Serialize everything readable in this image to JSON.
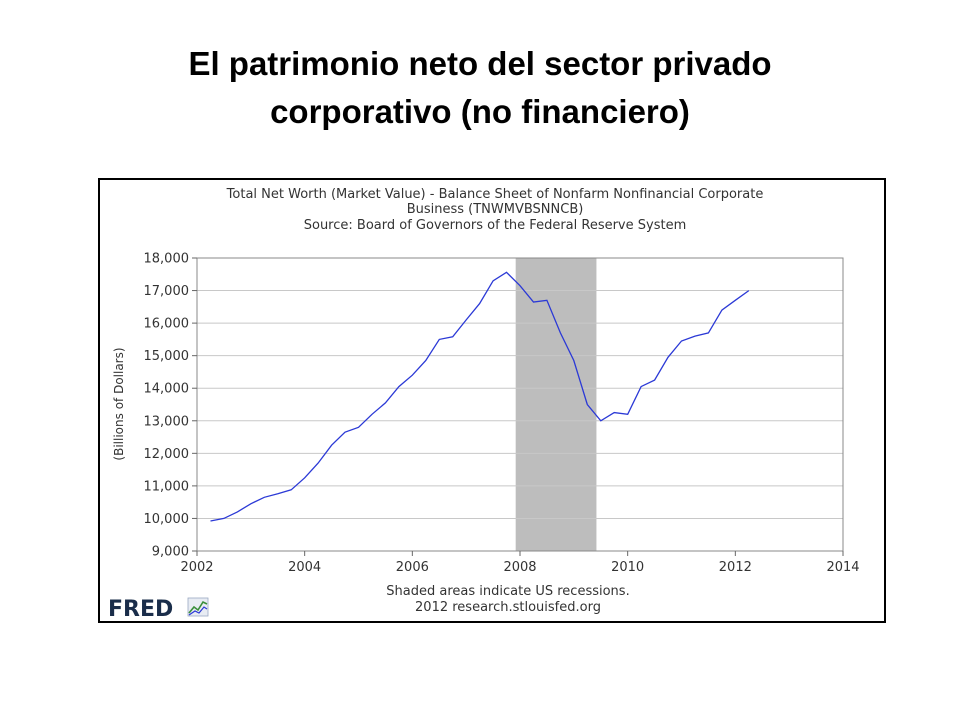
{
  "slide": {
    "title_line1": "El patrimonio neto del sector privado",
    "title_line2": "corporativo (no financiero)"
  },
  "chart_data": {
    "type": "line",
    "title_lines": [
      "Total Net Worth (Market Value) - Balance Sheet of Nonfarm Nonfinancial Corporate",
      "Business (TNWMVBSNNCB)",
      "Source: Board of Governors of the Federal Reserve System"
    ],
    "xlabel": "",
    "ylabel": "(Billions of Dollars)",
    "xlim": [
      2002,
      2014
    ],
    "ylim": [
      9000,
      18000
    ],
    "x_ticks": [
      2002,
      2004,
      2006,
      2008,
      2010,
      2012,
      2014
    ],
    "x_tick_labels": [
      "2002",
      "2004",
      "2006",
      "2008",
      "2010",
      "2012",
      "2014"
    ],
    "y_ticks": [
      9000,
      10000,
      11000,
      12000,
      13000,
      14000,
      15000,
      16000,
      17000,
      18000
    ],
    "y_tick_labels": [
      "9,000",
      "10,000",
      "11,000",
      "12,000",
      "13,000",
      "14,000",
      "15,000",
      "16,000",
      "17,000",
      "18,000"
    ],
    "grid": true,
    "recessions": [
      [
        2007.92,
        2009.42
      ]
    ],
    "series": [
      {
        "color": "#2b39d6",
        "x": [
          2002.25,
          2002.5,
          2002.75,
          2003.0,
          2003.25,
          2003.5,
          2003.75,
          2004.0,
          2004.25,
          2004.5,
          2004.75,
          2005.0,
          2005.25,
          2005.5,
          2005.75,
          2006.0,
          2006.25,
          2006.5,
          2006.75,
          2007.0,
          2007.25,
          2007.5,
          2007.75,
          2008.0,
          2008.25,
          2008.5,
          2008.75,
          2009.0,
          2009.25,
          2009.5,
          2009.75,
          2010.0,
          2010.25,
          2010.5,
          2010.75,
          2011.0,
          2011.25,
          2011.5,
          2011.75,
          2012.0,
          2012.25
        ],
        "values": [
          9920,
          10000,
          10200,
          10450,
          10650,
          10760,
          10880,
          11250,
          11700,
          12250,
          12650,
          12800,
          13200,
          13550,
          14050,
          14400,
          14850,
          15500,
          15580,
          16100,
          16600,
          17300,
          17560,
          17150,
          16650,
          16700,
          15700,
          14850,
          13500,
          13000,
          13250,
          13200,
          14050,
          14250,
          14950,
          15450,
          15600,
          15700,
          16400,
          16700,
          17000
        ]
      }
    ],
    "footer_lines": [
      "Shaded areas indicate US recessions.",
      "2012 research.stlouisfed.org"
    ],
    "logo_text": "FRED"
  }
}
